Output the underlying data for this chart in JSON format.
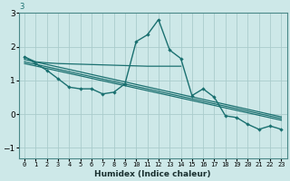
{
  "xlabel": "Humidex (Indice chaleur)",
  "x": [
    0,
    1,
    2,
    3,
    4,
    5,
    6,
    7,
    8,
    9,
    10,
    11,
    12,
    13,
    14,
    15,
    16,
    17,
    18,
    19,
    20,
    21,
    22,
    23
  ],
  "line_main": [
    1.7,
    1.5,
    1.3,
    1.05,
    0.8,
    0.75,
    0.75,
    0.6,
    0.65,
    0.9,
    2.15,
    2.35,
    2.8,
    1.9,
    1.65,
    0.55,
    0.75,
    0.5,
    -0.05,
    -0.1,
    -0.3,
    -0.45,
    -0.35,
    -0.45
  ],
  "line_upper_x": [
    0,
    1,
    2,
    3,
    4,
    5,
    6,
    7,
    8,
    9,
    10,
    11,
    12,
    13,
    14
  ],
  "line_upper_y": [
    1.7,
    1.55,
    1.52,
    1.5,
    1.49,
    1.48,
    1.47,
    1.46,
    1.45,
    1.44,
    1.43,
    1.42,
    1.42,
    1.42,
    1.42
  ],
  "trend1": [
    1.62,
    -0.08
  ],
  "trend2": [
    1.5,
    -0.18
  ],
  "trend3": [
    1.55,
    -0.13
  ],
  "bg_color": "#cde8e8",
  "line_color": "#1a7070",
  "grid_color": "#aacccc",
  "ylim": [
    -1.3,
    3.0
  ],
  "yticks": [
    -1,
    0,
    1,
    2,
    3
  ],
  "xlim": [
    -0.5,
    23.5
  ],
  "figsize": [
    3.2,
    2.0
  ],
  "dpi": 100
}
